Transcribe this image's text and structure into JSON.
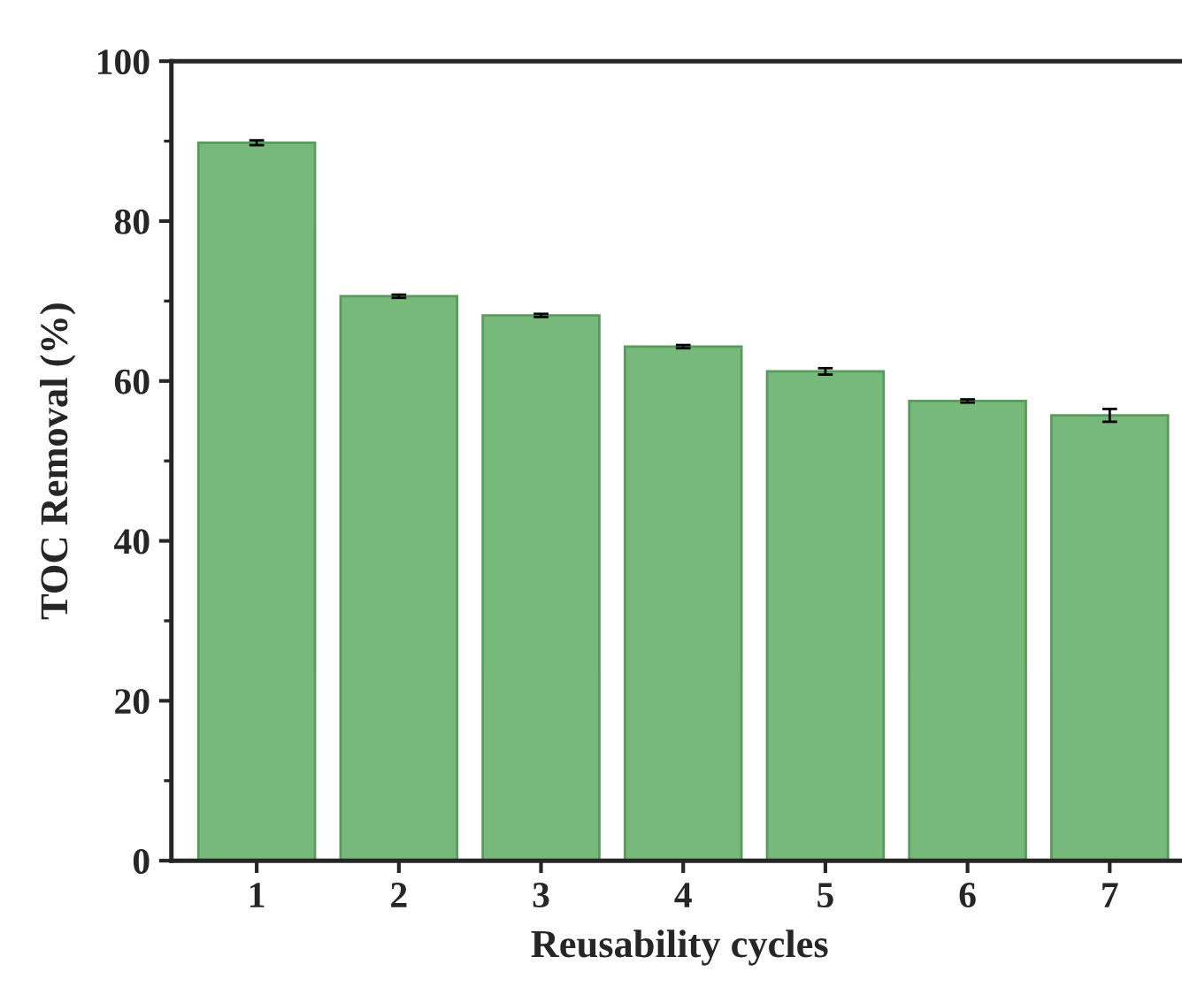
{
  "chart_data": {
    "type": "bar",
    "xlabel": "Reusability cycles",
    "ylabel": "TOC Removal (%)",
    "categories": [
      "1",
      "2",
      "3",
      "4",
      "5",
      "6",
      "7"
    ],
    "values": [
      89.8,
      70.6,
      68.2,
      64.3,
      61.2,
      57.5,
      55.7
    ],
    "errors": [
      0.3,
      0.2,
      0.2,
      0.2,
      0.4,
      0.2,
      0.8
    ],
    "color": "#77b97a",
    "ylim": [
      0,
      100
    ],
    "yticks": [
      0,
      20,
      40,
      60,
      80,
      100
    ],
    "grid": false
  }
}
